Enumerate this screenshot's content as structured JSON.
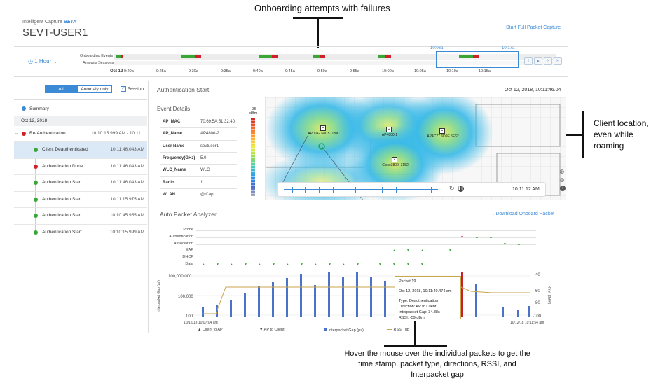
{
  "callouts": {
    "top": "Onboarding attempts with failures",
    "right": "Client location, even while roaming",
    "bottom": "Hover the mouse over the individual packets to get the time stamp, packet type, directions, RSSI, and Interpacket gap"
  },
  "header": {
    "app": "Intelligent Capture",
    "beta": "BETA",
    "user": "SEVT-USER1",
    "start_capture": "Start Full Packet Capture"
  },
  "timeline": {
    "range": "1 Hour",
    "row1": "Onboarding Events",
    "row2": "Analysis Sessions",
    "date": "Oct 12",
    "ticks": [
      "9:20a",
      "9:25a",
      "9:30a",
      "9:35a",
      "9:40a",
      "9:45a",
      "9:50a",
      "9:55a",
      "10:00a",
      "10:05a",
      "10:10a",
      "10:15a"
    ],
    "sel_start": "10:06a",
    "sel_end": "10:17a"
  },
  "filters": {
    "all": "All",
    "anomaly": "Anomaly only",
    "session": "Session"
  },
  "events": {
    "summary": "Summary",
    "date": "Oct 12, 2018",
    "group": "Re-Authentication",
    "group_time": "10:10:15.999 AM - 10:11",
    "items": [
      {
        "label": "Client Deauthenticated",
        "time": "10:11:46.043 AM",
        "color": "#3aa635"
      },
      {
        "label": "Authentication Done",
        "time": "10:11:46.043 AM",
        "color": "#d0202a"
      },
      {
        "label": "Authentication Start",
        "time": "10:11:46.043 AM",
        "color": "#3aa635"
      },
      {
        "label": "Authentication Start",
        "time": "10:11:15.975 AM",
        "color": "#3aa635"
      },
      {
        "label": "Authentication Start",
        "time": "10:10:45.955 AM",
        "color": "#3aa635"
      },
      {
        "label": "Authentication Start",
        "time": "10:10:15.999 AM",
        "color": "#3aa635"
      }
    ]
  },
  "detail": {
    "title": "Authentication Start",
    "datetime": "Oct 12, 2018, 10:11:46.04",
    "event_details": "Event Details",
    "fields": [
      [
        "AP_MAC",
        "70:69:5A:51:32:40"
      ],
      [
        "AP_Name",
        "AP4800-2"
      ],
      [
        "User Name",
        "sevtuser1"
      ],
      [
        "Frequency(GHz)",
        "5.0"
      ],
      [
        "WLC_Name",
        "WLC"
      ],
      [
        "Radio",
        "1"
      ],
      [
        "WLAN",
        "@iCap"
      ]
    ]
  },
  "map": {
    "legend_top": "-35",
    "legend_unit": "dBm",
    "aps": [
      "AP0042.68C5.D20C",
      "AP4800-1",
      "AP4C77.6D9E.5F62",
      "Cisco3800i-3152"
    ],
    "play_time": "10:11:12 AM"
  },
  "analyzer": {
    "title": "Auto Packet Analyzer",
    "download": "Download Onboard Packet",
    "rows": [
      "Probe",
      "Authentication",
      "Association",
      "EAP",
      "DHCP",
      "Data"
    ],
    "y_left": [
      "100,000,000",
      "100,000",
      "100"
    ],
    "y_right": [
      "-40",
      "-60",
      "-80",
      "-100"
    ],
    "y_left_label": "Interpacket Gap (µs)",
    "y_right_label": "RSSI (dBm)",
    "x_start": "10/12/18 10:07:04 am",
    "x_end": "10/12/18 10:11:54 am",
    "legend": [
      "Client to AP",
      "AP to Client",
      "Interpacket Gap (µs)",
      "RSSI (dB"
    ],
    "tooltip": {
      "title": "Packet 19",
      "time": "Oct 12, 2018, 10:11:40.474 am",
      "type": "Type: Deauthentication",
      "direction": "Direction: AP to Client",
      "gap": "Interpacket Gap: 34.88s",
      "rssi": "RSSI: -59 dBm"
    }
  }
}
